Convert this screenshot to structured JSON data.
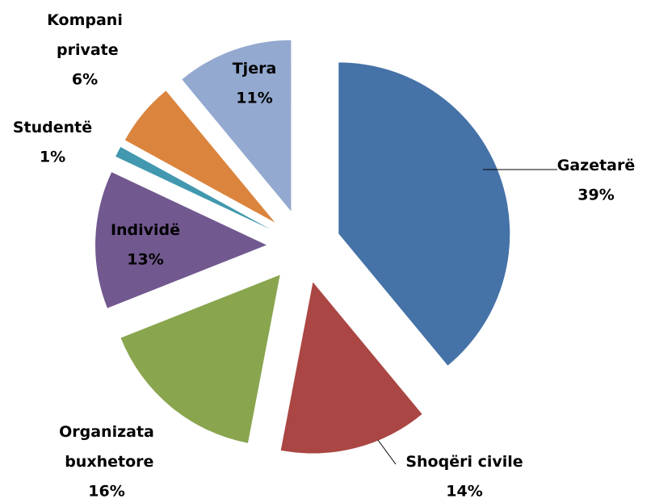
{
  "chart_data": {
    "type": "pie",
    "categories": [
      "Gazetarë",
      "Shoqëri civile",
      "Organizata buxhetore",
      "Individë",
      "Studentë",
      "Kompani private",
      "Tjera"
    ],
    "values": [
      39,
      14,
      16,
      13,
      1,
      6,
      11
    ],
    "value_labels": [
      "39%",
      "14%",
      "16%",
      "13%",
      "1%",
      "6%",
      "11%"
    ],
    "colors": [
      "#4572a7",
      "#aa4643",
      "#89a54e",
      "#71588f",
      "#4198af",
      "#db843d",
      "#93a9cf"
    ]
  }
}
